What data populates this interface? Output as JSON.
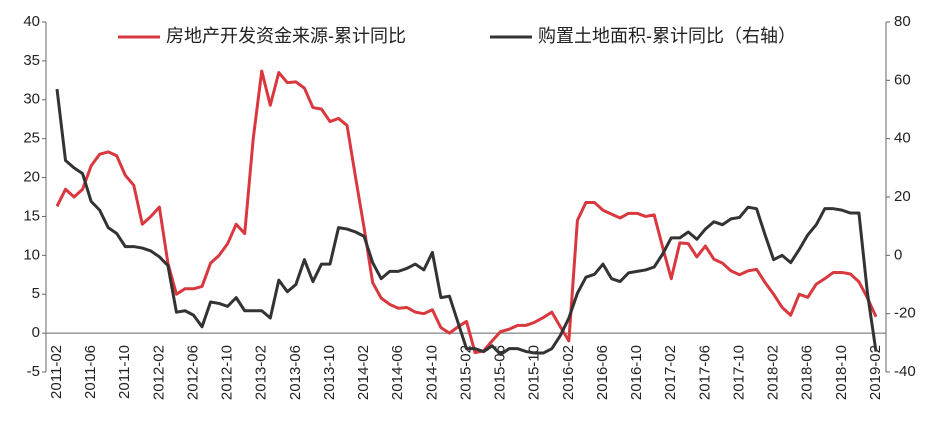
{
  "chart_data": {
    "type": "line",
    "categories": [
      "2011-02",
      null,
      null,
      null,
      "2011-06",
      null,
      null,
      null,
      "2011-10",
      null,
      null,
      null,
      "2012-02",
      null,
      null,
      null,
      "2012-06",
      null,
      null,
      null,
      "2012-10",
      null,
      null,
      null,
      "2013-02",
      null,
      null,
      null,
      "2013-06",
      null,
      null,
      null,
      "2013-10",
      null,
      null,
      null,
      "2014-02",
      null,
      null,
      null,
      "2014-06",
      null,
      null,
      null,
      "2014-10",
      null,
      null,
      null,
      "2015-02",
      null,
      null,
      null,
      "2015-06",
      null,
      null,
      null,
      "2015-10",
      null,
      null,
      null,
      "2016-02",
      null,
      null,
      null,
      "2016-06",
      null,
      null,
      null,
      "2016-10",
      null,
      null,
      null,
      "2017-02",
      null,
      null,
      null,
      "2017-06",
      null,
      null,
      null,
      "2017-10",
      null,
      null,
      null,
      "2018-02",
      null,
      null,
      null,
      "2018-06",
      null,
      null,
      null,
      "2018-10",
      null,
      null,
      null,
      "2019-02"
    ],
    "series": [
      {
        "name": "房地产开发资金来源-累计同比",
        "color": "#d9383f",
        "values": [
          16.3,
          18.5,
          17.5,
          18.5,
          21.5,
          23.0,
          23.3,
          22.8,
          20.3,
          19.0,
          14.0,
          15.0,
          16.2,
          9.0,
          5.0,
          5.7,
          5.7,
          6.0,
          9.0,
          10.0,
          11.5,
          14.0,
          12.8,
          25.0,
          33.7,
          29.3,
          33.5,
          32.2,
          32.3,
          31.5,
          29.0,
          28.8,
          27.2,
          27.6,
          26.7,
          20.0,
          13.5,
          6.5,
          4.5,
          3.7,
          3.2,
          3.3,
          2.7,
          2.5,
          3.0,
          0.7,
          0.0,
          0.8,
          1.5,
          -2.5,
          -2.3,
          -1.0,
          0.2,
          0.5,
          1.0,
          1.0,
          1.4,
          2.0,
          2.7,
          0.8,
          -1.0,
          14.5,
          16.8,
          16.8,
          15.8,
          15.3,
          14.8,
          15.4,
          15.4,
          15.0,
          15.2,
          11.0,
          7.0,
          11.6,
          11.5,
          9.8,
          11.2,
          9.5,
          9.0,
          8.0,
          7.5,
          8.0,
          8.2,
          6.5,
          5.0,
          3.3,
          2.3,
          5.0,
          4.6,
          6.3,
          7.0,
          7.8,
          7.8,
          7.6,
          6.6,
          4.5,
          2.1
        ]
      },
      {
        "name": "购置土地面积-累计同比（右轴）",
        "color": "#333333",
        "axis": "y2",
        "values": [
          57,
          32.5,
          30,
          28,
          18.5,
          15.5,
          9.5,
          7.5,
          3,
          3,
          2.5,
          1.5,
          -0.5,
          -3.5,
          -19.5,
          -19,
          -20.5,
          -24.5,
          -16,
          -16.5,
          -17.5,
          -14.5,
          -19,
          -19,
          -19,
          -21.5,
          -8.5,
          -12.5,
          -10,
          -1.5,
          -9,
          -3,
          -3,
          9.5,
          9,
          8,
          6.5,
          -2.5,
          -8,
          -5.5,
          -5.5,
          -4.5,
          -3,
          -5,
          1,
          -14.5,
          -14,
          -23,
          -32,
          -32,
          -33,
          -31,
          -34,
          -32,
          -32,
          -33,
          -33.5,
          -33.5,
          -32,
          -27.5,
          -21.5,
          -13,
          -7.5,
          -6.5,
          -3,
          -8,
          -9,
          -6,
          -5.5,
          -5,
          -4,
          0.5,
          6,
          6,
          8,
          5.5,
          9,
          11.5,
          10.5,
          12.5,
          13,
          16.5,
          16,
          7,
          -1.5,
          0,
          -2.5,
          2,
          7,
          10.5,
          16,
          16,
          15.5,
          14.5,
          14.5,
          -13,
          -33
        ]
      }
    ],
    "ylim": [
      -5,
      40
    ],
    "yticks": [
      -5,
      0,
      5,
      10,
      15,
      20,
      25,
      30,
      35,
      40
    ],
    "y2lim": [
      -40,
      80
    ],
    "y2ticks": [
      -40,
      -20,
      0,
      20,
      40,
      60,
      80
    ],
    "legend": "top",
    "grid": false
  }
}
